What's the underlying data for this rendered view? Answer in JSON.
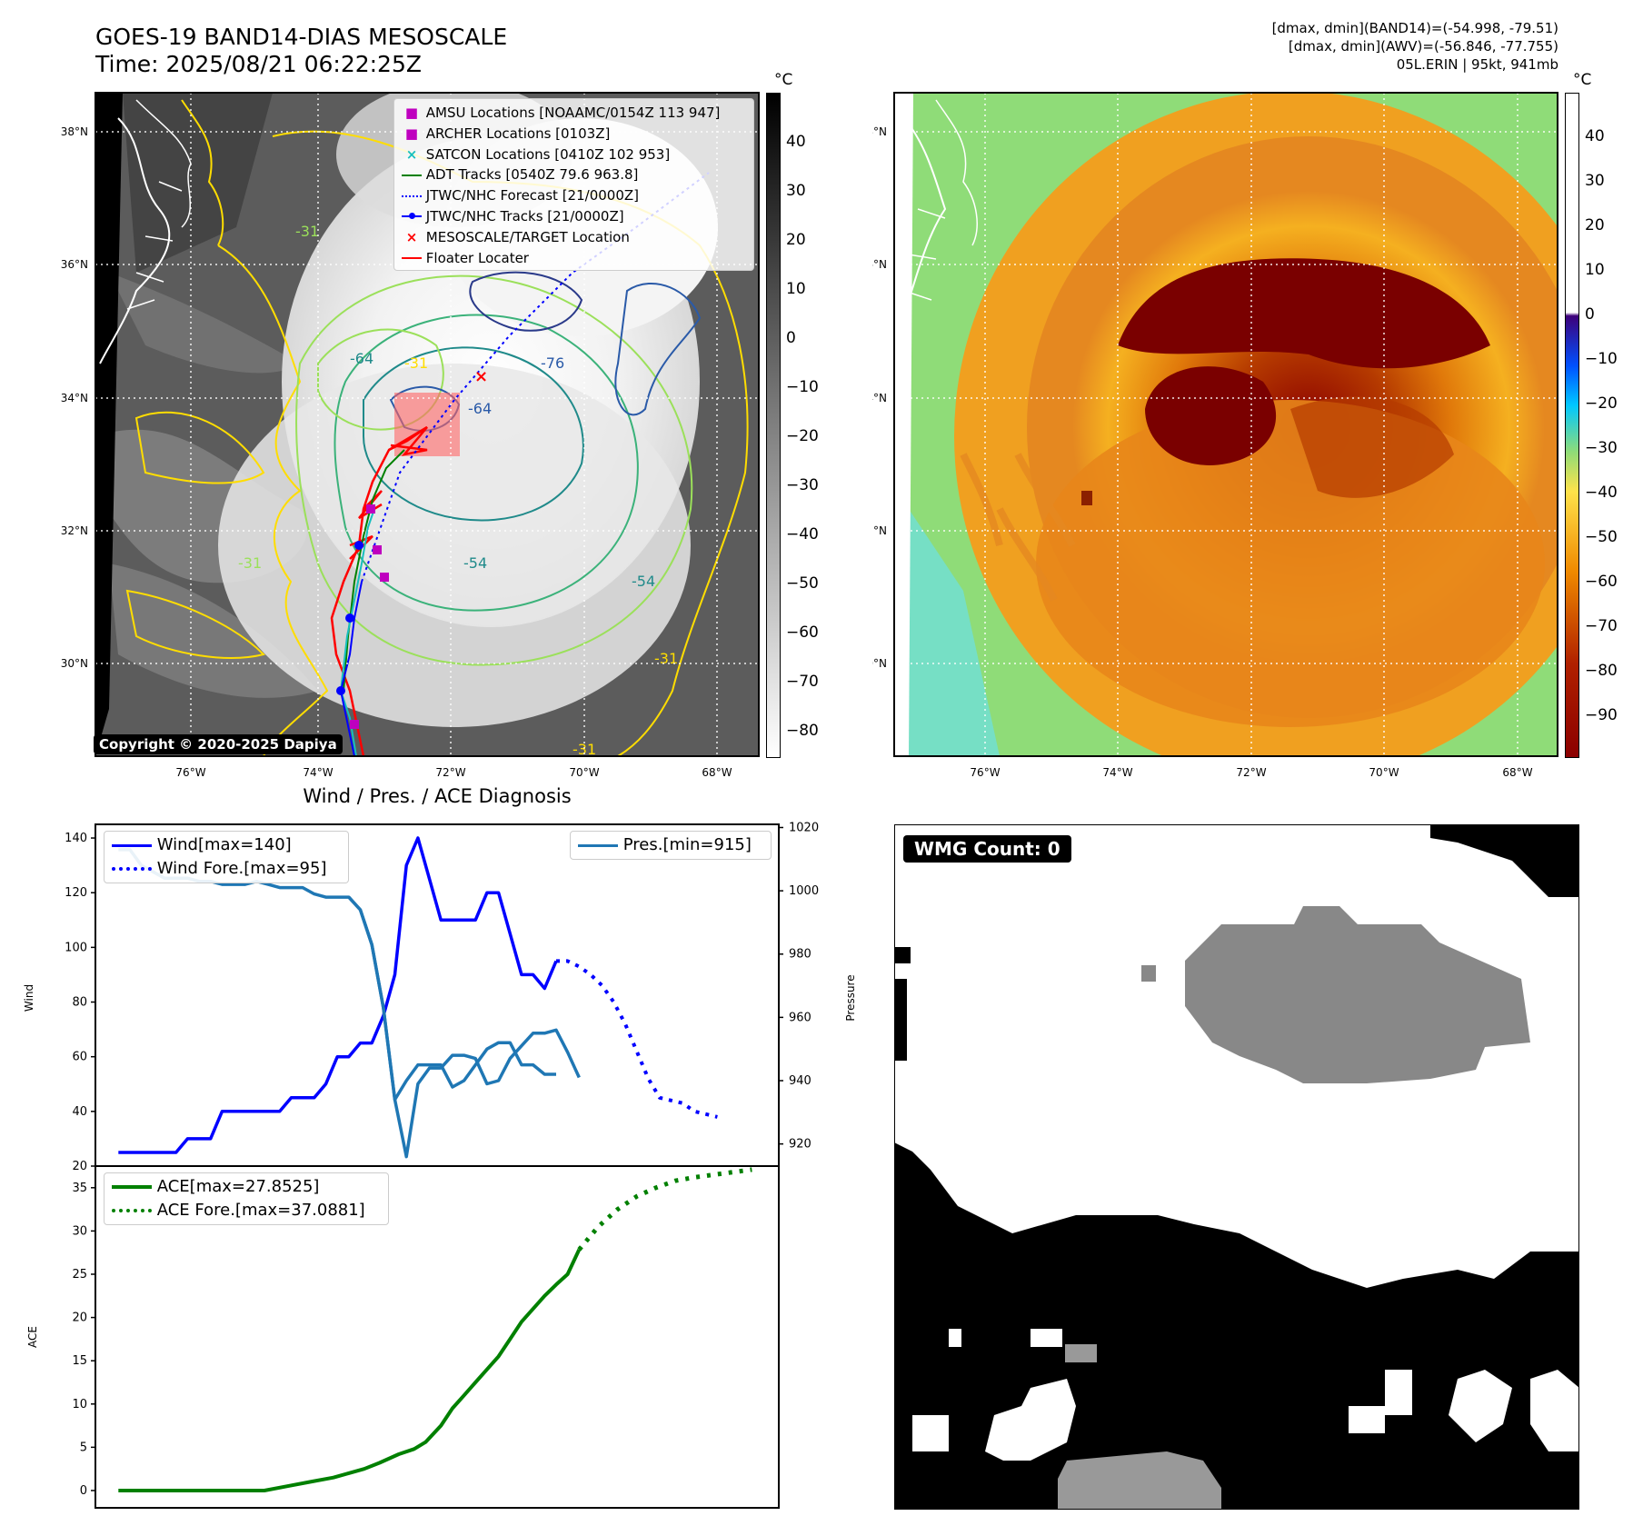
{
  "header": {
    "title": "GOES-19 BAND14-DIAS MESOSCALE",
    "time": "Time: 2025/08/21 06:22:25Z",
    "dmax_band14": "[dmax, dmin](BAND14)=(-54.998, -79.51)",
    "dmax_awv": "[dmax, dmin](AWV)=(-56.846, -77.755)",
    "storm": "05L.ERIN | 95kt, 941mb"
  },
  "map_axes": {
    "lat_ticks": [
      "38°N",
      "36°N",
      "34°N",
      "32°N",
      "30°N"
    ],
    "lon_ticks": [
      "76°W",
      "74°W",
      "72°W",
      "70°W",
      "68°W"
    ]
  },
  "left_map": {
    "legend": [
      {
        "label": "AMSU Locations [NOAAMC/0154Z 113 947]",
        "color": "#bf00bf",
        "marker": "square"
      },
      {
        "label": "ARCHER Locations [0103Z]",
        "color": "#bf00bf",
        "marker": "square"
      },
      {
        "label": "SATCON Locations [0410Z 102 953]",
        "color": "#17bfbf",
        "marker": "x"
      },
      {
        "label": "ADT Tracks [0540Z 79.6 963.8]",
        "color": "#008000",
        "marker": "line"
      },
      {
        "label": "JTWC/NHC Forecast [21/0000Z]",
        "color": "#0000ff",
        "marker": "dotted"
      },
      {
        "label": "JTWC/NHC Tracks [21/0000Z]",
        "color": "#0000ff",
        "marker": "line-dot"
      },
      {
        "label": "MESOSCALE/TARGET Location",
        "color": "#ff0000",
        "marker": "x"
      },
      {
        "label": "Floater Locater",
        "color": "#ff0000",
        "marker": "line"
      }
    ],
    "contour_labels": [
      "-64",
      "-76",
      "-31",
      "-54",
      "-64",
      "-54",
      "-31",
      "-31",
      "-31",
      "-31"
    ],
    "copyright": "Copyright © 2020-2025 Dapiya"
  },
  "colorbar_left": {
    "unit": "°C",
    "ticks": [
      "40",
      "30",
      "20",
      "10",
      "0",
      "−10",
      "−20",
      "−30",
      "−40",
      "−50",
      "−60",
      "−70",
      "−80"
    ]
  },
  "colorbar_right": {
    "unit": "°C",
    "ticks": [
      "40",
      "30",
      "20",
      "10",
      "0",
      "−10",
      "−20",
      "−30",
      "−40",
      "−50",
      "−60",
      "−70",
      "−80",
      "−90"
    ]
  },
  "chart_data": [
    {
      "type": "line",
      "title": "Wind / Pres. / ACE Diagnosis",
      "xlabel": "",
      "ylabel": "Wind",
      "ylabel_right": "Pressure",
      "ylim": [
        20,
        145
      ],
      "ylim_right": [
        913,
        1021
      ],
      "yticks": [
        20,
        40,
        60,
        80,
        100,
        120,
        140
      ],
      "yticks_right": [
        920,
        940,
        960,
        980,
        1000,
        1020
      ],
      "legend": [
        "Wind[max=140]",
        "Wind Fore.[max=95]",
        "Pres.[min=915]"
      ],
      "series": [
        {
          "name": "Wind[max=140]",
          "axis": "left",
          "color": "#0000ff",
          "style": "solid",
          "x": [
            0,
            6,
            12,
            18,
            24,
            30,
            36,
            42,
            48,
            54,
            60,
            66,
            72,
            78,
            84,
            90,
            96,
            102,
            108,
            114,
            120,
            126,
            132,
            138,
            144,
            150,
            156,
            162,
            168,
            174,
            180,
            186,
            192,
            198,
            204,
            210,
            216,
            222,
            228
          ],
          "values": [
            25,
            25,
            25,
            25,
            25,
            25,
            30,
            30,
            30,
            40,
            40,
            40,
            40,
            40,
            40,
            45,
            45,
            45,
            50,
            60,
            60,
            65,
            65,
            75,
            90,
            130,
            140,
            125,
            110,
            110,
            110,
            110,
            120,
            120,
            105,
            90,
            90,
            85,
            95
          ]
        },
        {
          "name": "Wind Fore.[max=95]",
          "axis": "left",
          "color": "#0000ff",
          "style": "dotted",
          "x": [
            228,
            234,
            240,
            246,
            252,
            258,
            264,
            270,
            276,
            282,
            288,
            294,
            300,
            306,
            312
          ],
          "values": [
            95,
            95,
            93,
            90,
            86,
            80,
            72,
            62,
            52,
            45,
            44,
            43,
            40,
            39,
            38
          ]
        },
        {
          "name": "Pres.[min=915]",
          "axis": "right",
          "color": "#1f77b4",
          "style": "solid",
          "x": [
            0,
            6,
            12,
            18,
            24,
            30,
            36,
            42,
            48,
            54,
            60,
            66,
            72,
            78,
            84,
            90,
            96,
            102,
            108,
            114,
            120,
            126,
            132,
            138,
            144,
            150,
            156,
            162,
            168,
            174,
            180,
            186,
            192,
            198,
            204,
            210,
            216,
            222,
            228
          ],
          "values": [
            1013,
            1013,
            1008,
            1006,
            1004,
            1004,
            1004,
            1003,
            1003,
            1002,
            1002,
            1002,
            1003,
            1002,
            1001,
            1001,
            1001,
            999,
            998,
            998,
            998,
            994,
            983,
            963,
            934,
            940,
            945,
            945,
            945,
            938,
            940,
            945,
            950,
            952,
            952,
            945,
            945,
            942,
            942
          ]
        },
        {
          "name": "Pres.",
          "axis": "right",
          "color": "#1f77b4",
          "style": "solid",
          "x": [
            120,
            126,
            132,
            138,
            144,
            150,
            156,
            162,
            168,
            174,
            180,
            186,
            192,
            198,
            204,
            210,
            216,
            222,
            228,
            234,
            240
          ],
          "values": [
            998,
            994,
            983,
            963,
            934,
            916,
            939,
            944,
            944,
            948,
            948,
            947,
            939,
            940,
            947,
            951,
            955,
            955,
            956,
            949,
            941
          ]
        }
      ]
    },
    {
      "type": "line",
      "title": "",
      "xlabel": "",
      "ylabel": "ACE",
      "ylim": [
        -2,
        37.5
      ],
      "yticks": [
        0,
        5,
        10,
        15,
        20,
        25,
        30,
        35
      ],
      "legend": [
        "ACE[max=27.8525]",
        "ACE Fore.[max=37.0881]"
      ],
      "series": [
        {
          "name": "ACE[max=27.8525]",
          "color": "#008000",
          "style": "solid",
          "x": [
            0,
            20,
            40,
            52,
            64,
            76,
            88,
            100,
            112,
            120,
            128,
            136,
            146,
            154,
            160,
            168,
            174,
            180,
            186,
            192,
            198,
            204,
            210,
            216,
            222,
            228,
            234,
            240
          ],
          "values": [
            0,
            0,
            0,
            0,
            0,
            0,
            0.5,
            1.0,
            1.5,
            2.0,
            2.5,
            3.2,
            4.2,
            4.8,
            5.6,
            7.5,
            9.5,
            11.0,
            12.5,
            14.0,
            15.5,
            17.5,
            19.5,
            21.0,
            22.5,
            23.8,
            25.0,
            27.85
          ]
        },
        {
          "name": "ACE Fore.[max=37.0881]",
          "color": "#008000",
          "style": "dotted",
          "x": [
            240,
            250,
            260,
            270,
            280,
            290,
            300,
            310,
            320,
            330
          ],
          "values": [
            27.85,
            30.5,
            32.5,
            34.0,
            35.0,
            35.8,
            36.2,
            36.5,
            36.8,
            37.09
          ]
        }
      ]
    }
  ],
  "wmg_panel": {
    "label": "WMG Count: 0"
  }
}
